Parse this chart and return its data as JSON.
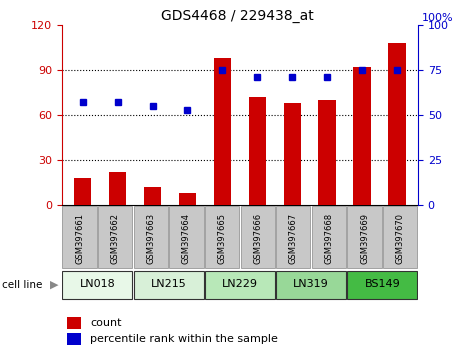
{
  "title": "GDS4468 / 229438_at",
  "samples": [
    "GSM397661",
    "GSM397662",
    "GSM397663",
    "GSM397664",
    "GSM397665",
    "GSM397666",
    "GSM397667",
    "GSM397668",
    "GSM397669",
    "GSM397670"
  ],
  "counts": [
    18,
    22,
    12,
    8,
    98,
    72,
    68,
    70,
    92,
    108
  ],
  "percentile_ranks": [
    57,
    57,
    55,
    53,
    75,
    71,
    71,
    71,
    75,
    75
  ],
  "cell_lines": [
    {
      "label": "LN018",
      "start": 0,
      "end": 2
    },
    {
      "label": "LN215",
      "start": 2,
      "end": 4
    },
    {
      "label": "LN229",
      "start": 4,
      "end": 6
    },
    {
      "label": "LN319",
      "start": 6,
      "end": 8
    },
    {
      "label": "BS149",
      "start": 8,
      "end": 10
    }
  ],
  "cell_line_colors": [
    "#e8f8e8",
    "#d8f0d8",
    "#b8e8b8",
    "#98d898",
    "#44bb44"
  ],
  "ylim_left": [
    0,
    120
  ],
  "ylim_right": [
    0,
    100
  ],
  "yticks_left": [
    0,
    30,
    60,
    90,
    120
  ],
  "yticks_right": [
    0,
    25,
    50,
    75,
    100
  ],
  "bar_color": "#cc0000",
  "dot_color": "#0000cc",
  "bar_width": 0.5,
  "sample_bg_color": "#c8c8c8",
  "sample_edge_color": "#888888",
  "legend_count_color": "#cc0000",
  "legend_dot_color": "#0000cc"
}
